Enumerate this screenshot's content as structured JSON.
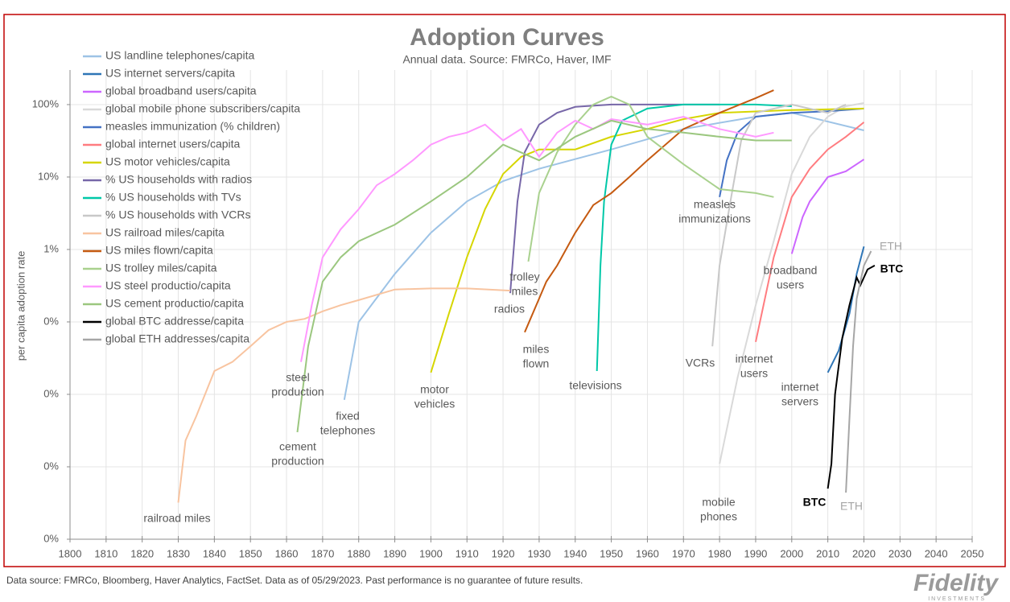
{
  "chart_data": {
    "type": "line",
    "title": "Adoption Curves",
    "subtitle": "Annual data.  Source: FMRCo, Haver, IMF",
    "ylabel": "per capita adoption rate",
    "log_scale": true,
    "grid": true,
    "legend": "upper left",
    "xlim": [
      1800,
      2050
    ],
    "xticks": [
      1800,
      1810,
      1820,
      1830,
      1840,
      1850,
      1860,
      1870,
      1880,
      1890,
      1900,
      1910,
      1920,
      1930,
      1940,
      1950,
      1960,
      1970,
      1980,
      1990,
      2000,
      2010,
      2020,
      2030,
      2040,
      2050
    ],
    "ylim": [
      0.0001,
      300
    ],
    "yticks": [
      {
        "value": 100,
        "label": "100%"
      },
      {
        "value": 10,
        "label": "10%"
      },
      {
        "value": 1,
        "label": "1%"
      },
      {
        "value": 0.1,
        "label": "0%"
      },
      {
        "value": 0.01,
        "label": "0%"
      },
      {
        "value": 0.001,
        "label": "0%"
      },
      {
        "value": 0.0001,
        "label": "0%"
      }
    ],
    "series": [
      {
        "name": "US landline telephones/capita",
        "color": "#9dc3e6",
        "x": [
          1876,
          1880,
          1890,
          1900,
          1910,
          1920,
          1930,
          1950,
          1970,
          1990,
          2000,
          2020
        ],
        "values": [
          0.0084,
          0.1,
          0.46,
          1.7,
          4.6,
          8.8,
          13,
          24,
          46,
          68,
          77,
          44
        ]
      },
      {
        "name": "US internet servers/capita",
        "color": "#2e75b6",
        "x": [
          2010,
          2013,
          2016,
          2018,
          2020
        ],
        "values": [
          0.02,
          0.04,
          0.13,
          0.46,
          1.1
        ]
      },
      {
        "name": "global broadband users/capita",
        "color": "#cc66ff",
        "x": [
          2000,
          2003,
          2005,
          2010,
          2015,
          2020
        ],
        "values": [
          0.87,
          2.8,
          4.6,
          10,
          12,
          17.5
        ]
      },
      {
        "name": "global mobile phone subscribers/capita",
        "color": "#d9d9d9",
        "x": [
          1980,
          1985,
          1990,
          1995,
          2000,
          2005,
          2010,
          2015,
          2020
        ],
        "values": [
          0.0011,
          0.017,
          0.17,
          1.3,
          11,
          36,
          68,
          95,
          105
        ]
      },
      {
        "name": "measles immunization (% children)",
        "color": "#4472c4",
        "x": [
          1980,
          1982,
          1985,
          1990,
          2000,
          2010,
          2020
        ],
        "values": [
          5.3,
          17,
          41,
          68,
          77,
          81,
          88
        ]
      },
      {
        "name": "global internet users/capita",
        "color": "#ff7c80",
        "x": [
          1990,
          1995,
          2000,
          2005,
          2010,
          2015,
          2020
        ],
        "values": [
          0.053,
          0.78,
          5.3,
          13,
          24,
          36,
          57
        ]
      },
      {
        "name": "US motor vehicles/capita",
        "color": "#d6d600",
        "x": [
          1900,
          1905,
          1910,
          1915,
          1920,
          1925,
          1930,
          1940,
          1950,
          1960,
          1970,
          1980,
          2000,
          2020
        ],
        "values": [
          0.02,
          0.13,
          0.78,
          3.6,
          11,
          19,
          24,
          24,
          36,
          46,
          63,
          77,
          84,
          88
        ]
      },
      {
        "name": "% US households with radios",
        "color": "#7767a8",
        "x": [
          1922,
          1924,
          1926,
          1930,
          1935,
          1940,
          1950,
          1980
        ],
        "values": [
          0.25,
          4.6,
          22,
          53,
          77,
          93,
          100,
          100
        ]
      },
      {
        "name": "% US households with TVs",
        "color": "#00c8a8",
        "x": [
          1946,
          1947,
          1948,
          1950,
          1953,
          1960,
          1970,
          1990,
          2000
        ],
        "values": [
          0.021,
          0.6,
          4.6,
          28,
          60,
          88,
          100,
          100,
          95
        ]
      },
      {
        "name": "% US households with VCRs",
        "color": "#c8c8c8",
        "x": [
          1978,
          1980,
          1983,
          1986,
          1990,
          2000,
          2010,
          2015
        ],
        "values": [
          0.046,
          0.6,
          4.6,
          32,
          77,
          100,
          77,
          100
        ]
      },
      {
        "name": "US railroad miles/capita",
        "color": "#f8c4a0",
        "x": [
          1830,
          1832,
          1835,
          1840,
          1845,
          1850,
          1855,
          1860,
          1865,
          1870,
          1875,
          1880,
          1890,
          1900,
          1910,
          1922
        ],
        "values": [
          0.00032,
          0.0023,
          0.005,
          0.021,
          0.028,
          0.046,
          0.077,
          0.1,
          0.11,
          0.14,
          0.17,
          0.2,
          0.28,
          0.29,
          0.29,
          0.27
        ]
      },
      {
        "name": "US miles flown/capita",
        "color": "#c55a11",
        "x": [
          1926,
          1930,
          1932,
          1935,
          1940,
          1945,
          1950,
          1955,
          1960,
          1970,
          1980,
          1990,
          1995
        ],
        "values": [
          0.072,
          0.21,
          0.36,
          0.6,
          1.7,
          4.1,
          6,
          10,
          17,
          46,
          77,
          123,
          158
        ]
      },
      {
        "name": "US trolley miles/capita",
        "color": "#a9d18e",
        "x": [
          1927,
          1930,
          1935,
          1940,
          1945,
          1950,
          1955,
          1960,
          1970,
          1980,
          1990,
          1995
        ],
        "values": [
          0.68,
          6,
          22,
          53,
          100,
          129,
          100,
          36,
          15,
          6.8,
          6,
          5.3
        ]
      },
      {
        "name": "US steel productio/capita",
        "color": "#ff99ff",
        "x": [
          1864,
          1867,
          1870,
          1875,
          1880,
          1885,
          1890,
          1895,
          1900,
          1905,
          1910,
          1915,
          1920,
          1925,
          1930,
          1935,
          1940,
          1945,
          1950,
          1960,
          1970,
          1980,
          1990,
          1995
        ],
        "values": [
          0.028,
          0.17,
          0.78,
          1.9,
          3.6,
          7.7,
          11,
          17,
          28,
          36,
          41,
          53,
          32,
          46,
          19,
          41,
          60,
          46,
          63,
          53,
          68,
          46,
          36,
          41
        ]
      },
      {
        "name": "US cement productio/capita",
        "color": "#9bc77f",
        "x": [
          1863,
          1866,
          1870,
          1875,
          1880,
          1890,
          1900,
          1910,
          1920,
          1930,
          1940,
          1950,
          1960,
          1970,
          1980,
          1990,
          2000
        ],
        "values": [
          0.003,
          0.046,
          0.36,
          0.78,
          1.3,
          2.2,
          4.6,
          10,
          28,
          17,
          36,
          60,
          46,
          41,
          36,
          32,
          32
        ]
      },
      {
        "name": "global BTC addresse/capita",
        "color": "#000000",
        "x": [
          2010,
          2011,
          2012,
          2014,
          2016,
          2018,
          2019,
          2021,
          2023
        ],
        "values": [
          0.0005,
          0.0011,
          0.01,
          0.06,
          0.17,
          0.41,
          0.32,
          0.53,
          0.6
        ]
      },
      {
        "name": "global ETH addresses/capita",
        "color": "#a6a6a6",
        "x": [
          2015,
          2016,
          2017,
          2018,
          2020,
          2022
        ],
        "values": [
          0.00044,
          0.0046,
          0.046,
          0.21,
          0.6,
          0.95
        ]
      }
    ],
    "annotations": [
      [
        "railroad miles"
      ],
      [
        "steel",
        "production"
      ],
      [
        "cement",
        "production"
      ],
      [
        "fixed",
        "telephones"
      ],
      [
        "motor",
        "vehicles"
      ],
      [
        "trolley",
        "miles"
      ],
      [
        "radios"
      ],
      [
        "miles",
        "flown"
      ],
      [
        "televisions"
      ],
      [
        "measles",
        "immunizations"
      ],
      [
        "VCRs"
      ],
      [
        "broadband",
        "users"
      ],
      [
        "internet",
        "users"
      ],
      [
        "internet",
        "servers"
      ],
      [
        "mobile",
        "phones"
      ],
      [
        "BTC"
      ],
      [
        "ETH"
      ],
      [
        "ETH"
      ],
      [
        "BTC"
      ]
    ],
    "footnote": "Data source: FMRCo, Bloomberg, Haver Analytics, FactSet. Data as of 05/29/2023. Past performance is no guarantee of future results.",
    "logo": {
      "name": "Fidelity",
      "sub": "INVESTMENTS"
    }
  }
}
